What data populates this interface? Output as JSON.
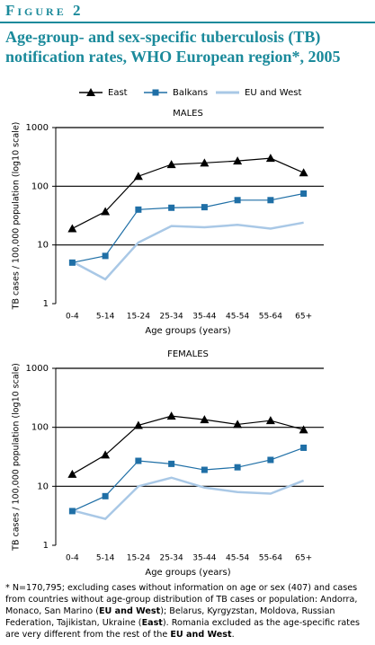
{
  "figure_label": "Figure 2",
  "title": "Age-group- and sex-specific tuberculosis (TB) notification rates, WHO European region*, 2005",
  "chart_data": [
    {
      "type": "line",
      "title": "MALES",
      "x_label": "Age groups (years)",
      "y_label": "TB cases / 100,000 population (log10 scale)",
      "categories": [
        "0-4",
        "5-14",
        "15-24",
        "25-34",
        "35-44",
        "45-54",
        "55-64",
        "65+"
      ],
      "log_scale": true,
      "grid": true,
      "ylim": [
        1,
        1000
      ],
      "yticks": [
        1,
        10,
        100,
        1000
      ],
      "series": [
        {
          "name": "East",
          "color": "#000000",
          "marker": "triangle",
          "values": [
            19,
            37,
            148,
            235,
            250,
            270,
            300,
            170
          ]
        },
        {
          "name": "Balkans",
          "color": "#1f6fa6",
          "marker": "square",
          "values": [
            5,
            6.5,
            40,
            43,
            44,
            58,
            58,
            75
          ]
        },
        {
          "name": "EU and West",
          "color": "#a9c8e6",
          "marker": "none",
          "values": [
            5.2,
            2.6,
            11,
            21,
            20,
            22,
            19,
            24
          ]
        }
      ]
    },
    {
      "type": "line",
      "title": "FEMALES",
      "x_label": "Age groups (years)",
      "y_label": "TB cases / 100,000 population (log10 scale)",
      "categories": [
        "0-4",
        "5-14",
        "15-24",
        "25-34",
        "35-44",
        "45-54",
        "55-64",
        "65+"
      ],
      "log_scale": true,
      "grid": true,
      "ylim": [
        1,
        1000
      ],
      "yticks": [
        1,
        10,
        100,
        1000
      ],
      "series": [
        {
          "name": "East",
          "color": "#000000",
          "marker": "triangle",
          "values": [
            16,
            34,
            108,
            155,
            135,
            112,
            130,
            91
          ]
        },
        {
          "name": "Balkans",
          "color": "#1f6fa6",
          "marker": "square",
          "values": [
            3.8,
            6.8,
            27,
            24,
            19,
            21,
            28,
            45
          ]
        },
        {
          "name": "EU and West",
          "color": "#a9c8e6",
          "marker": "none",
          "values": [
            3.9,
            2.8,
            10,
            14,
            9.5,
            8,
            7.5,
            12.5
          ]
        }
      ]
    }
  ],
  "footnote": [
    {
      "text": "* N=170,795; excluding cases without information on age or sex (407) and cases from countries without age-group distribution of TB cases or population: Andorra, Monaco, San Marino (",
      "bold": false
    },
    {
      "text": "EU and West",
      "bold": true
    },
    {
      "text": "); Belarus, Kyrgyzstan, Moldova, Russian Federation, Tajikistan, Ukraine (",
      "bold": false
    },
    {
      "text": "East",
      "bold": true
    },
    {
      "text": "). Romania excluded as the age-specific rates are very different from the rest of the ",
      "bold": false
    },
    {
      "text": "EU and West",
      "bold": true
    },
    {
      "text": ".",
      "bold": false
    }
  ]
}
